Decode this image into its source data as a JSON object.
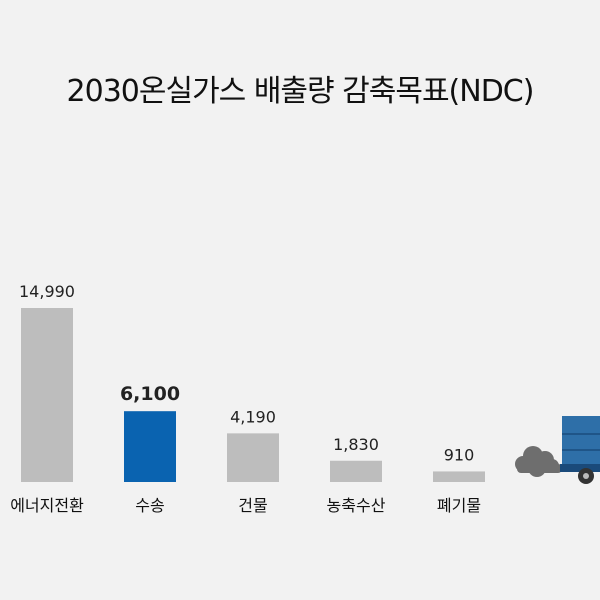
{
  "chart_data": {
    "type": "bar",
    "title": "2030온실가스 배출량 감축목표(NDC)",
    "categories": [
      "에너지전환",
      "수송",
      "건물",
      "농축수산",
      "폐기물"
    ],
    "values": [
      14990,
      6100,
      4190,
      1830,
      910
    ],
    "value_labels": [
      "14,990",
      "6,100",
      "4,190",
      "1,830",
      "910"
    ],
    "highlight_index": 1,
    "colors": {
      "bar": "#bdbdbd",
      "highlight": "#0a63b0",
      "background": "#f2f2f2",
      "text": "#222222"
    },
    "grid": false,
    "legend": "none",
    "ylim": [
      0,
      14990
    ]
  },
  "illustration": {
    "truck": "delivery-truck-icon",
    "smoke": "exhaust-smoke-icon"
  }
}
